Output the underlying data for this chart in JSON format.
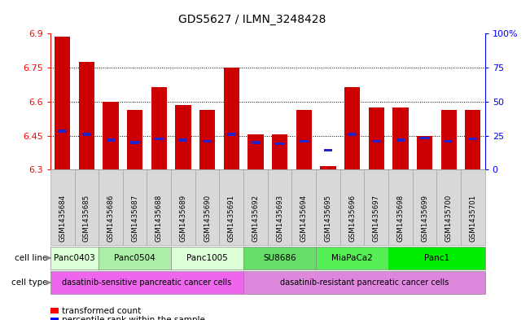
{
  "title": "GDS5627 / ILMN_3248428",
  "samples": [
    "GSM1435684",
    "GSM1435685",
    "GSM1435686",
    "GSM1435687",
    "GSM1435688",
    "GSM1435689",
    "GSM1435690",
    "GSM1435691",
    "GSM1435692",
    "GSM1435693",
    "GSM1435694",
    "GSM1435695",
    "GSM1435696",
    "GSM1435697",
    "GSM1435698",
    "GSM1435699",
    "GSM1435700",
    "GSM1435701"
  ],
  "bar_values": [
    6.885,
    6.775,
    6.6,
    6.565,
    6.665,
    6.585,
    6.565,
    6.75,
    6.455,
    6.455,
    6.565,
    6.315,
    6.665,
    6.575,
    6.575,
    6.45,
    6.565,
    6.565
  ],
  "percentile_values": [
    6.47,
    6.455,
    6.43,
    6.42,
    6.435,
    6.43,
    6.425,
    6.455,
    6.42,
    6.415,
    6.425,
    6.385,
    6.455,
    6.425,
    6.43,
    6.44,
    6.425,
    6.435
  ],
  "bar_bottom": 6.3,
  "ylim_min": 6.3,
  "ylim_max": 6.9,
  "bar_color": "#cc0000",
  "percentile_color": "#2222cc",
  "cell_lines": [
    {
      "name": "Panc0403",
      "start": 0,
      "end": 2,
      "color": "#ddffd8"
    },
    {
      "name": "Panc0504",
      "start": 2,
      "end": 5,
      "color": "#aaeea8"
    },
    {
      "name": "Panc1005",
      "start": 5,
      "end": 8,
      "color": "#ddffd8"
    },
    {
      "name": "SU8686",
      "start": 8,
      "end": 11,
      "color": "#66dd66"
    },
    {
      "name": "MiaPaCa2",
      "start": 11,
      "end": 14,
      "color": "#55ee55"
    },
    {
      "name": "Panc1",
      "start": 14,
      "end": 18,
      "color": "#00ee00"
    }
  ],
  "cell_types": [
    {
      "name": "dasatinib-sensitive pancreatic cancer cells",
      "start": 0,
      "end": 8,
      "color": "#ee66ee"
    },
    {
      "name": "dasatinib-resistant pancreatic cancer cells",
      "start": 8,
      "end": 18,
      "color": "#dd88dd"
    }
  ],
  "yticks": [
    6.3,
    6.45,
    6.6,
    6.75,
    6.9
  ],
  "right_yticks": [
    0,
    25,
    50,
    75,
    100
  ],
  "right_ytick_labels": [
    "0",
    "25",
    "50",
    "75",
    "100%"
  ]
}
